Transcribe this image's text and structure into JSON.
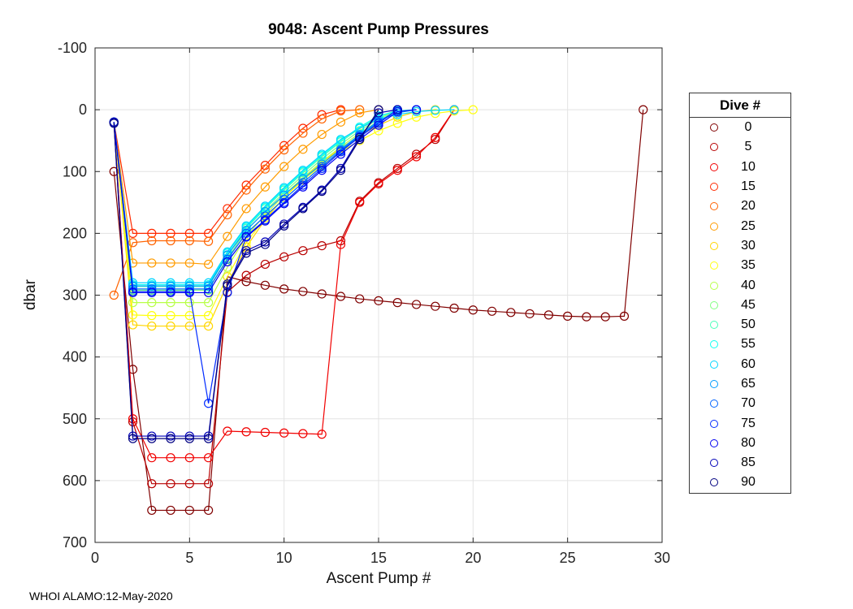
{
  "footer": {
    "text": "WHOI ALAMO:12-May-2020"
  },
  "chart_data": {
    "type": "line",
    "title": "9048: Ascent Pump Pressures",
    "xlabel": "Ascent Pump #",
    "ylabel": "dbar",
    "xlim": [
      0,
      30
    ],
    "ylim": [
      -100,
      700
    ],
    "y_direction": "reversed",
    "xticks": [
      0,
      5,
      10,
      15,
      20,
      25,
      30
    ],
    "yticks": [
      -100,
      0,
      100,
      200,
      300,
      400,
      500,
      600,
      700
    ],
    "grid": true,
    "marker_style": "open-circle",
    "legend_title": "Dive #",
    "legend_position": "right-outside",
    "series": [
      {
        "name": "0",
        "color": "#800000",
        "x": [
          1,
          2,
          3,
          4,
          5,
          6,
          7,
          8,
          9,
          10,
          11,
          12,
          13,
          14,
          15,
          16,
          17,
          18,
          19,
          20,
          21,
          22,
          23,
          24,
          25,
          26,
          27,
          28,
          29
        ],
        "y": [
          100,
          420,
          648,
          648,
          648,
          648,
          270,
          278,
          284,
          290,
          294,
          298,
          302,
          306,
          309,
          312,
          315,
          318,
          321,
          324,
          326,
          328,
          330,
          332,
          334,
          335,
          335,
          334,
          0
        ]
      },
      {
        "name": "5",
        "color": "#B80000",
        "x": [
          1,
          2,
          3,
          4,
          5,
          6,
          7,
          8,
          9,
          10,
          11,
          12,
          13,
          14,
          15,
          16,
          17,
          18,
          19
        ],
        "y": [
          20,
          505,
          605,
          605,
          605,
          605,
          295,
          268,
          250,
          238,
          228,
          220,
          212,
          148,
          118,
          95,
          72,
          48,
          0
        ]
      },
      {
        "name": "10",
        "color": "#F10000",
        "x": [
          1,
          2,
          3,
          4,
          5,
          6,
          7,
          8,
          9,
          10,
          11,
          12,
          13,
          14,
          15,
          16,
          17,
          18,
          19
        ],
        "y": [
          20,
          500,
          563,
          563,
          563,
          563,
          520,
          521,
          522,
          523,
          524,
          525,
          218,
          150,
          120,
          98,
          76,
          45,
          0
        ]
      },
      {
        "name": "15",
        "color": "#FF2A00",
        "x": [
          1,
          2,
          3,
          4,
          5,
          6,
          7,
          8,
          9,
          10,
          11,
          12,
          13
        ],
        "y": [
          20,
          200,
          200,
          200,
          200,
          200,
          160,
          122,
          90,
          58,
          30,
          8,
          0
        ]
      },
      {
        "name": "20",
        "color": "#FF6300",
        "x": [
          1,
          2,
          3,
          4,
          5,
          6,
          7,
          8,
          9,
          10,
          11,
          12,
          13,
          14
        ],
        "y": [
          300,
          215,
          212,
          212,
          212,
          213,
          170,
          130,
          96,
          65,
          38,
          15,
          2,
          0
        ]
      },
      {
        "name": "25",
        "color": "#FF9C00",
        "x": [
          1,
          2,
          3,
          4,
          5,
          6,
          7,
          8,
          9,
          10,
          11,
          12,
          13,
          14,
          15
        ],
        "y": [
          20,
          248,
          248,
          248,
          248,
          250,
          205,
          160,
          125,
          92,
          64,
          40,
          20,
          5,
          0
        ]
      },
      {
        "name": "30",
        "color": "#FFD500",
        "x": [
          1,
          2,
          3,
          4,
          5,
          6,
          7,
          8,
          9,
          10,
          11,
          12,
          13,
          14,
          15,
          16,
          17,
          18
        ],
        "y": [
          20,
          348,
          350,
          350,
          350,
          350,
          282,
          222,
          178,
          142,
          112,
          86,
          62,
          42,
          25,
          12,
          3,
          0
        ]
      },
      {
        "name": "35",
        "color": "#FFFF0E",
        "x": [
          1,
          2,
          3,
          4,
          5,
          6,
          7,
          8,
          9,
          10,
          11,
          12,
          13,
          14,
          15,
          16,
          17,
          18,
          19,
          20
        ],
        "y": [
          20,
          332,
          333,
          333,
          333,
          333,
          270,
          215,
          175,
          142,
          114,
          90,
          68,
          50,
          34,
          22,
          12,
          6,
          2,
          0
        ]
      },
      {
        "name": "40",
        "color": "#B8FF47",
        "x": [
          1,
          2,
          3,
          4,
          5,
          6,
          7,
          8,
          9,
          10,
          11,
          12,
          13,
          14,
          15,
          16
        ],
        "y": [
          20,
          312,
          312,
          312,
          312,
          312,
          255,
          205,
          170,
          138,
          110,
          84,
          60,
          38,
          18,
          0
        ]
      },
      {
        "name": "45",
        "color": "#80FF80",
        "x": [
          1,
          2,
          3,
          4,
          5,
          6,
          7,
          8,
          9,
          10,
          11,
          12,
          13,
          14,
          15,
          16
        ],
        "y": [
          20,
          292,
          292,
          292,
          292,
          292,
          240,
          196,
          164,
          134,
          106,
          80,
          56,
          34,
          15,
          0
        ]
      },
      {
        "name": "50",
        "color": "#47FFB8",
        "x": [
          1,
          2,
          3,
          4,
          5,
          6,
          7,
          8,
          9,
          10,
          11,
          12,
          13,
          14,
          15,
          16
        ],
        "y": [
          20,
          286,
          286,
          286,
          286,
          286,
          236,
          192,
          160,
          130,
          102,
          76,
          52,
          30,
          12,
          0
        ]
      },
      {
        "name": "55",
        "color": "#0EFFF1",
        "x": [
          1,
          2,
          3,
          4,
          5,
          6,
          7,
          8,
          9,
          10,
          11,
          12,
          13,
          14,
          15,
          16,
          17
        ],
        "y": [
          20,
          283,
          283,
          283,
          283,
          283,
          232,
          190,
          158,
          128,
          100,
          74,
          50,
          28,
          10,
          2,
          0
        ]
      },
      {
        "name": "60",
        "color": "#00D5FF",
        "x": [
          1,
          2,
          3,
          4,
          5,
          6,
          7,
          8,
          9,
          10,
          11,
          12,
          13,
          14,
          15,
          16,
          17,
          18,
          19
        ],
        "y": [
          20,
          280,
          280,
          280,
          280,
          280,
          230,
          188,
          156,
          126,
          98,
          72,
          48,
          30,
          15,
          8,
          3,
          1,
          0
        ]
      },
      {
        "name": "65",
        "color": "#009CFF",
        "x": [
          1,
          2,
          3,
          4,
          5,
          6,
          7,
          8,
          9,
          10,
          11,
          12,
          13,
          14,
          15,
          16,
          17
        ],
        "y": [
          20,
          285,
          285,
          285,
          285,
          285,
          235,
          195,
          165,
          138,
          112,
          88,
          64,
          40,
          18,
          5,
          0
        ]
      },
      {
        "name": "70",
        "color": "#0063FF",
        "x": [
          1,
          2,
          3,
          4,
          5,
          6,
          7,
          8,
          9,
          10,
          11,
          12,
          13,
          14,
          15,
          16
        ],
        "y": [
          20,
          290,
          290,
          290,
          290,
          290,
          242,
          200,
          172,
          145,
          118,
          92,
          66,
          42,
          20,
          0
        ]
      },
      {
        "name": "75",
        "color": "#002AFF",
        "x": [
          1,
          2,
          3,
          4,
          5,
          6,
          7,
          8,
          9,
          10,
          11,
          12,
          13,
          14,
          15,
          16
        ],
        "y": [
          20,
          294,
          294,
          294,
          294,
          475,
          296,
          205,
          178,
          150,
          122,
          95,
          68,
          44,
          22,
          0
        ]
      },
      {
        "name": "80",
        "color": "#0000F1",
        "x": [
          1,
          2,
          3,
          4,
          5,
          6,
          7,
          8,
          9,
          10,
          11,
          12,
          13,
          14,
          15,
          16,
          17
        ],
        "y": [
          20,
          296,
          296,
          296,
          296,
          296,
          246,
          206,
          180,
          152,
          125,
          98,
          72,
          48,
          25,
          3,
          0
        ]
      },
      {
        "name": "85",
        "color": "#0000B8",
        "x": [
          1,
          2,
          3,
          4,
          5,
          6,
          7,
          8,
          9,
          10,
          11,
          12,
          13,
          14,
          15,
          16
        ],
        "y": [
          20,
          528,
          528,
          528,
          528,
          528,
          282,
          228,
          214,
          185,
          158,
          130,
          95,
          45,
          5,
          0
        ]
      },
      {
        "name": "90",
        "color": "#000080",
        "x": [
          1,
          2,
          3,
          4,
          5,
          6,
          7,
          8,
          9,
          10,
          11,
          12,
          13,
          14,
          15
        ],
        "y": [
          22,
          532,
          532,
          532,
          532,
          532,
          285,
          232,
          218,
          188,
          160,
          132,
          98,
          48,
          0
        ]
      }
    ]
  }
}
